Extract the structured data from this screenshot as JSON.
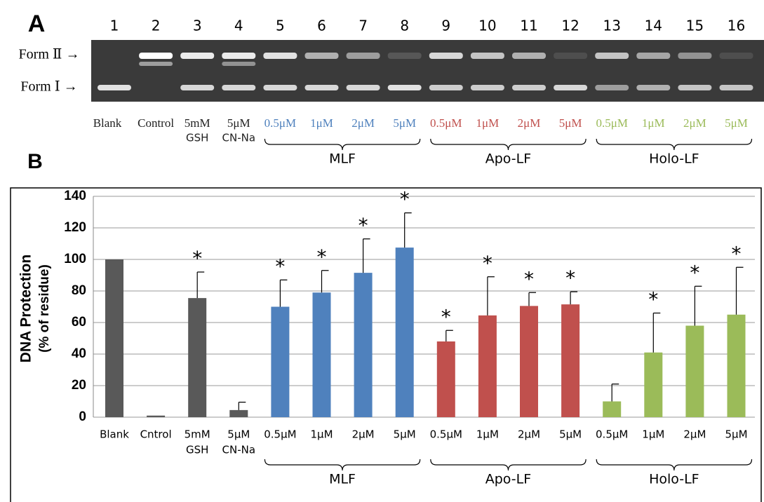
{
  "panel_labels": [
    "A",
    "B"
  ],
  "gel": {
    "lane_numbers": [
      "1",
      "2",
      "3",
      "4",
      "5",
      "6",
      "7",
      "8",
      "9",
      "10",
      "11",
      "12",
      "13",
      "14",
      "15",
      "16"
    ],
    "band_labels": [
      "Form Ⅱ →",
      "Form Ⅰ →"
    ],
    "lane_labels": [
      [
        "Blank"
      ],
      [
        "Control"
      ],
      [
        "5mM",
        "GSH"
      ],
      [
        "5μM",
        "CN-Na"
      ],
      [
        "0.5μM"
      ],
      [
        "1μM"
      ],
      [
        "2μM"
      ],
      [
        "5μM"
      ],
      [
        "0.5μM"
      ],
      [
        "1μM"
      ],
      [
        "2μM"
      ],
      [
        "5μM"
      ],
      [
        "0.5μM"
      ],
      [
        "1μM"
      ],
      [
        "2μM"
      ],
      [
        "5μM"
      ]
    ],
    "label_colors": [
      "#222",
      "#222",
      "#222",
      "#222",
      "#4f81bd",
      "#4f81bd",
      "#4f81bd",
      "#4f81bd",
      "#c0504d",
      "#c0504d",
      "#c0504d",
      "#c0504d",
      "#9bbb59",
      "#9bbb59",
      "#9bbb59",
      "#9bbb59"
    ],
    "groups": [
      "MLF",
      "Apo-LF",
      "Holo-LF"
    ]
  },
  "chart_data": {
    "type": "bar",
    "ylabel": [
      "DNA Protection",
      "(% of residue)"
    ],
    "categories": [
      [
        "Blank"
      ],
      [
        "Cntrol"
      ],
      [
        "5mM",
        "GSH"
      ],
      [
        "5μM",
        "CN-Na"
      ],
      [
        "0.5μM"
      ],
      [
        "1μM"
      ],
      [
        "2μM"
      ],
      [
        "5μM"
      ],
      [
        "0.5μM"
      ],
      [
        "1μM"
      ],
      [
        "2μM"
      ],
      [
        "5μM"
      ],
      [
        "0.5μM"
      ],
      [
        "1μM"
      ],
      [
        "2μM"
      ],
      [
        "5μM"
      ]
    ],
    "values": [
      100,
      1,
      75.5,
      4.5,
      70,
      79,
      91.5,
      107.5,
      48,
      64.5,
      70.5,
      71.5,
      10,
      41,
      58,
      65
    ],
    "errors": [
      0,
      0,
      16.5,
      5,
      17,
      14,
      21.5,
      22,
      7,
      24.5,
      8.5,
      8,
      11,
      25,
      25,
      30
    ],
    "significance": [
      null,
      null,
      "*",
      null,
      "*",
      "*",
      "*",
      "*",
      "*",
      "*",
      "*",
      "*",
      null,
      "*",
      "*",
      "*"
    ],
    "colors": [
      "#595959",
      "#595959",
      "#595959",
      "#595959",
      "#4f81bd",
      "#4f81bd",
      "#4f81bd",
      "#4f81bd",
      "#c0504d",
      "#c0504d",
      "#c0504d",
      "#c0504d",
      "#9bbb59",
      "#9bbb59",
      "#9bbb59",
      "#9bbb59"
    ],
    "groups": [
      "MLF",
      "Apo-LF",
      "Holo-LF"
    ],
    "ylim": [
      0,
      140
    ],
    "yticks": [
      0,
      20,
      40,
      60,
      80,
      100,
      120,
      140
    ],
    "grid": true
  }
}
